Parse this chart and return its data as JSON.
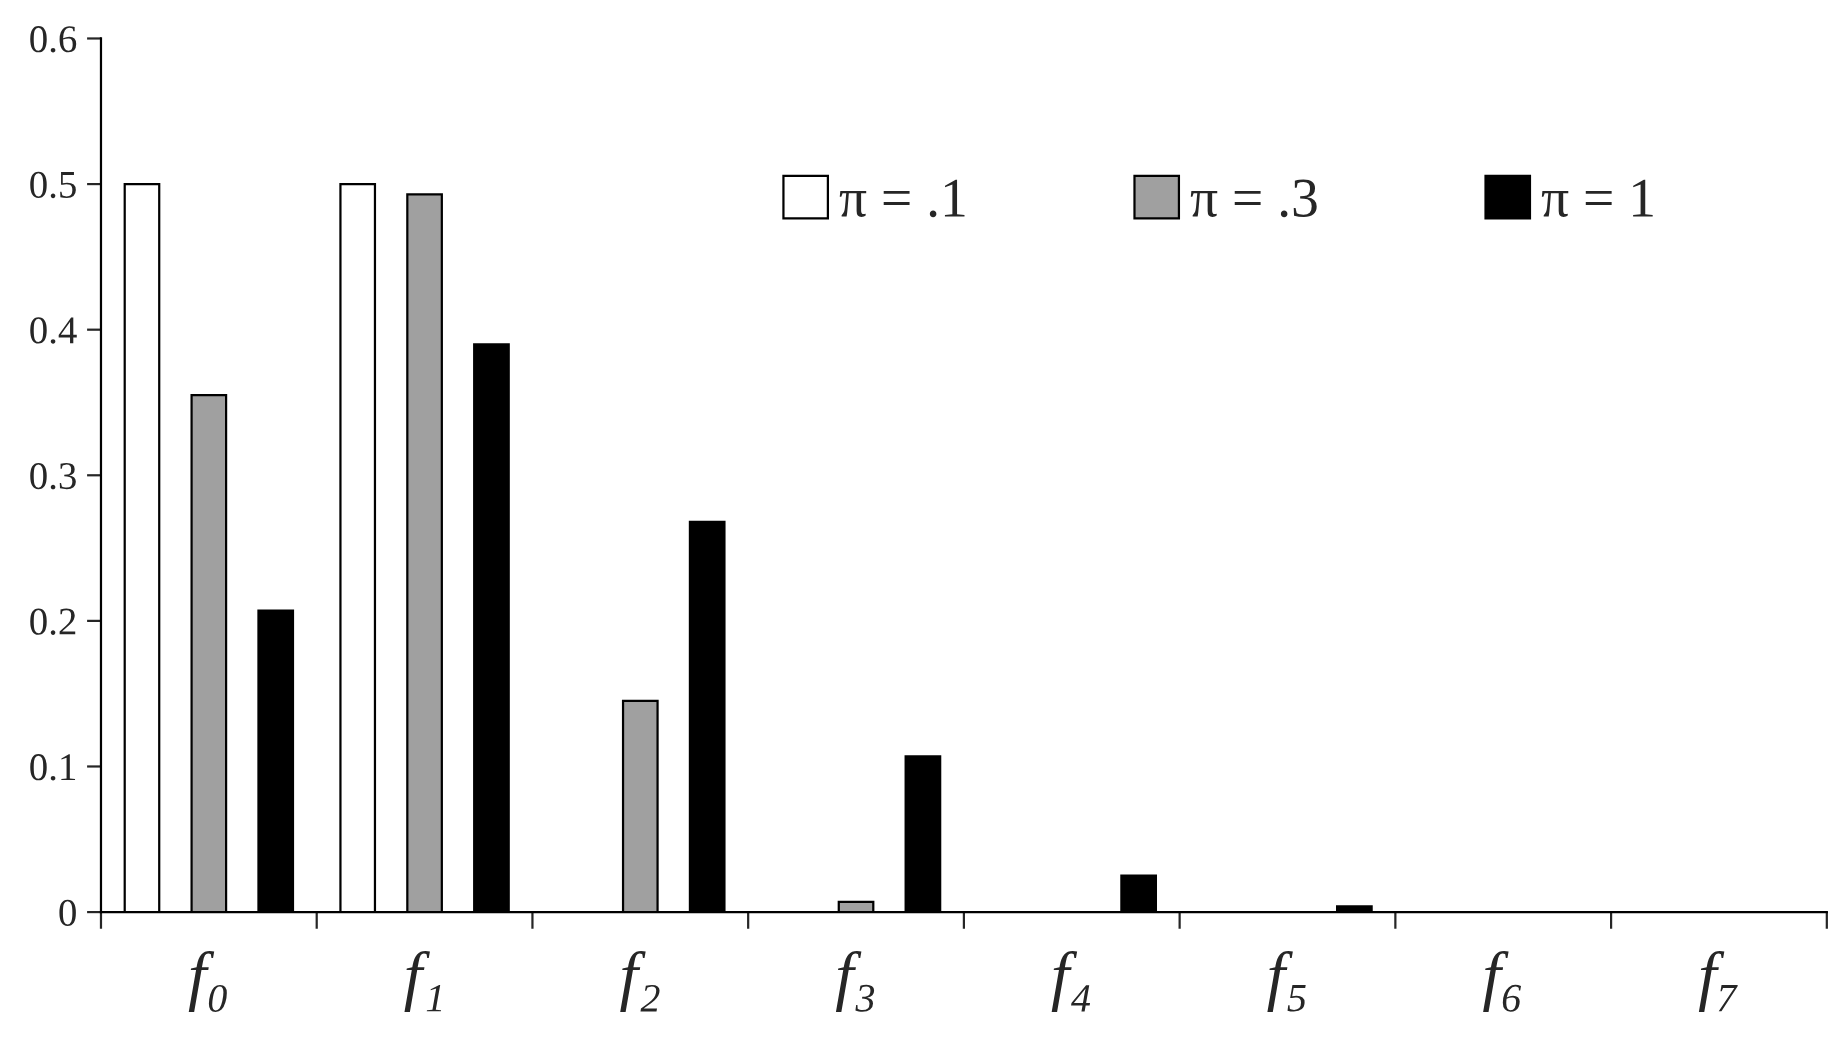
{
  "chart_data": {
    "type": "bar",
    "categories": [
      "f₀",
      "f₁",
      "f₂",
      "f₃",
      "f₄",
      "f₅",
      "f₆",
      "f₇"
    ],
    "series": [
      {
        "name": "π = .1",
        "color": "#ffffff",
        "values": [
          0.5,
          0.5,
          0,
          0,
          0,
          0,
          0,
          0
        ]
      },
      {
        "name": "π = .3",
        "color": "#a0a0a0",
        "values": [
          0.355,
          0.493,
          0.145,
          0.007,
          0,
          0,
          0,
          0
        ]
      },
      {
        "name": "π = 1",
        "color": "#000000",
        "values": [
          0.207,
          0.39,
          0.268,
          0.107,
          0.025,
          0.004,
          0,
          0
        ]
      }
    ],
    "ylim": [
      0,
      0.6
    ],
    "yticks": [
      0,
      0.1,
      0.2,
      0.3,
      0.4,
      0.5,
      0.6
    ],
    "grid": false,
    "legend": "top right"
  }
}
